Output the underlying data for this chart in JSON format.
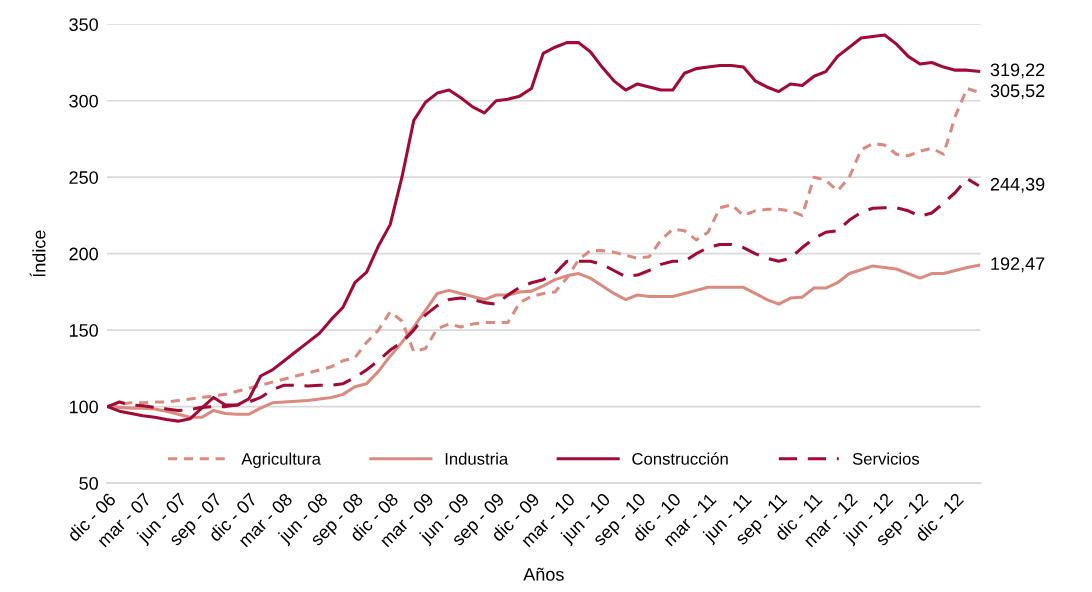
{
  "chart_data": {
    "type": "line",
    "xlabel": "Años",
    "ylabel": "Índice",
    "categories": [
      "dic - 06",
      null,
      null,
      "mar - 07",
      null,
      null,
      "jun - 07",
      null,
      null,
      "sep - 07",
      null,
      null,
      "dic - 07",
      null,
      null,
      "mar - 08",
      null,
      null,
      "jun - 08",
      null,
      null,
      "sep - 08",
      null,
      null,
      "dic - 08",
      null,
      null,
      "mar - 09",
      null,
      null,
      "jun - 09",
      null,
      null,
      "sep - 09",
      null,
      null,
      "dic - 09",
      null,
      null,
      "mar - 10",
      null,
      null,
      "jun - 10",
      null,
      null,
      "sep - 10",
      null,
      null,
      "dic - 10",
      null,
      null,
      "mar - 11",
      null,
      null,
      "jun - 11",
      null,
      null,
      "sep - 11",
      null,
      null,
      "dic - 11",
      null,
      null,
      "mar - 12",
      null,
      null,
      "jun - 12",
      null,
      null,
      "sep - 12",
      null,
      null,
      "dic - 12",
      null,
      null
    ],
    "series": [
      {
        "name": "Agricultura",
        "color": "#d98b80",
        "line_style": "dotted",
        "values": [
          100,
          101.5,
          102.5,
          102.5,
          103,
          103,
          104,
          105,
          106,
          107,
          108,
          110,
          112,
          114,
          116,
          118,
          120,
          122,
          124,
          126,
          130,
          132,
          142,
          150,
          162,
          156,
          136,
          138,
          151,
          154,
          152,
          154,
          155,
          155,
          155,
          168,
          172,
          174,
          175,
          184,
          196,
          202,
          202,
          201,
          199,
          197,
          198,
          209,
          216,
          215,
          209,
          214,
          230,
          232,
          225,
          228,
          229,
          229,
          228,
          225,
          250,
          248,
          241,
          250,
          268,
          272,
          271,
          265,
          264,
          267,
          269,
          265,
          290,
          308,
          305.52
        ],
        "value_labels": [
          null,
          null,
          null,
          null,
          null,
          null,
          null,
          null,
          null,
          null,
          null,
          null,
          null,
          null,
          null,
          null,
          null,
          null,
          null,
          null,
          null,
          null,
          null,
          null,
          null,
          null,
          null,
          null,
          null,
          null,
          null,
          null,
          null,
          null,
          null,
          null,
          null,
          null,
          null,
          null,
          null,
          null,
          null,
          null,
          null,
          null,
          null,
          null,
          null,
          null,
          null,
          null,
          null,
          null,
          null,
          null,
          null,
          null,
          null,
          null,
          null,
          null,
          null,
          null,
          null,
          null,
          null,
          null,
          null,
          null,
          null,
          null,
          null,
          null,
          "305,52"
        ]
      },
      {
        "name": "Industria",
        "color": "#d98b80",
        "line_style": "solid",
        "values": [
          100,
          99.5,
          99,
          99,
          98.5,
          97,
          95,
          93,
          93,
          97.5,
          95.5,
          95,
          95,
          99,
          102.5,
          103,
          103.5,
          104,
          105,
          106,
          108,
          113,
          115,
          123,
          133,
          142,
          152,
          163,
          174,
          176,
          174,
          172,
          170,
          173,
          173,
          175,
          175.5,
          179,
          183,
          185.5,
          187,
          184,
          179,
          174,
          170,
          173,
          172,
          172,
          172,
          174,
          176,
          178,
          178,
          178,
          178,
          174,
          170,
          167,
          171,
          171.6,
          177.5,
          177.5,
          181,
          187,
          189.5,
          192,
          191,
          190,
          187,
          184,
          187,
          187,
          189,
          191,
          192.47
        ],
        "value_labels": [
          null,
          null,
          null,
          null,
          null,
          null,
          null,
          null,
          null,
          null,
          null,
          null,
          null,
          null,
          null,
          null,
          null,
          null,
          null,
          null,
          null,
          null,
          null,
          null,
          null,
          null,
          null,
          null,
          null,
          null,
          null,
          null,
          null,
          null,
          null,
          null,
          null,
          null,
          null,
          null,
          null,
          null,
          null,
          null,
          null,
          null,
          null,
          null,
          null,
          null,
          null,
          null,
          null,
          null,
          null,
          null,
          null,
          null,
          null,
          null,
          null,
          null,
          null,
          null,
          null,
          null,
          null,
          null,
          null,
          null,
          null,
          null,
          null,
          null,
          "192,47"
        ]
      },
      {
        "name": "Construcción",
        "color": "#a10a35",
        "line_style": "solid",
        "values": [
          100,
          97,
          95.5,
          94,
          93,
          91.5,
          90.5,
          92,
          99,
          106,
          101,
          101,
          105,
          120,
          124,
          130,
          136,
          142,
          148,
          157,
          165,
          181,
          188,
          205,
          219,
          250,
          287,
          299,
          305,
          307,
          302,
          296,
          292,
          300,
          301,
          303,
          308,
          331,
          335,
          338,
          338,
          332,
          322,
          313,
          307,
          311,
          309,
          307,
          307,
          318,
          321,
          322,
          323,
          323,
          322,
          313,
          309,
          306,
          311,
          310,
          316,
          319,
          329,
          335,
          341,
          342,
          343,
          337,
          329,
          324,
          325,
          322,
          320,
          320,
          319.22
        ],
        "value_labels": [
          null,
          null,
          null,
          null,
          null,
          null,
          null,
          null,
          null,
          null,
          null,
          null,
          null,
          null,
          null,
          null,
          null,
          null,
          null,
          null,
          null,
          null,
          null,
          null,
          null,
          null,
          null,
          null,
          null,
          null,
          null,
          null,
          null,
          null,
          null,
          null,
          null,
          null,
          null,
          null,
          null,
          null,
          null,
          null,
          null,
          null,
          null,
          null,
          null,
          null,
          null,
          null,
          null,
          null,
          null,
          null,
          null,
          null,
          null,
          null,
          null,
          null,
          null,
          null,
          null,
          null,
          null,
          null,
          null,
          null,
          null,
          null,
          null,
          null,
          "319,22"
        ]
      },
      {
        "name": "Servicios",
        "color": "#a10a35",
        "line_style": "dashed",
        "values": [
          100,
          103,
          101,
          100.5,
          99.5,
          98.5,
          97.5,
          98,
          99.5,
          100,
          100,
          101,
          103,
          106,
          111,
          114,
          114,
          113.5,
          114,
          114,
          115,
          119,
          124,
          130,
          137,
          142,
          150,
          160,
          166,
          170,
          171,
          170,
          168,
          167,
          173,
          178,
          181,
          183,
          187,
          195,
          195,
          195,
          193,
          189,
          185,
          186,
          189,
          193,
          195,
          195,
          200,
          204,
          206,
          206,
          204,
          200,
          197,
          195,
          197,
          204,
          210,
          214,
          215,
          222,
          227,
          229.7,
          230,
          230,
          228,
          224.5,
          226.6,
          233,
          240,
          249,
          244.39
        ],
        "value_labels": [
          null,
          null,
          null,
          null,
          null,
          null,
          null,
          null,
          null,
          null,
          null,
          null,
          null,
          null,
          null,
          null,
          null,
          null,
          null,
          null,
          null,
          null,
          null,
          null,
          null,
          null,
          null,
          null,
          null,
          null,
          null,
          null,
          null,
          null,
          null,
          null,
          null,
          null,
          null,
          null,
          null,
          null,
          null,
          null,
          null,
          null,
          null,
          null,
          null,
          null,
          null,
          null,
          null,
          null,
          null,
          null,
          null,
          null,
          null,
          null,
          null,
          null,
          null,
          null,
          null,
          null,
          null,
          null,
          null,
          null,
          null,
          null,
          null,
          null,
          "244,39"
        ]
      }
    ],
    "ylim": [
      50,
      350
    ],
    "yticks": [
      50,
      100,
      150,
      200,
      250,
      300,
      350
    ],
    "grid": "y",
    "legend": "bottom",
    "marker": "none"
  }
}
